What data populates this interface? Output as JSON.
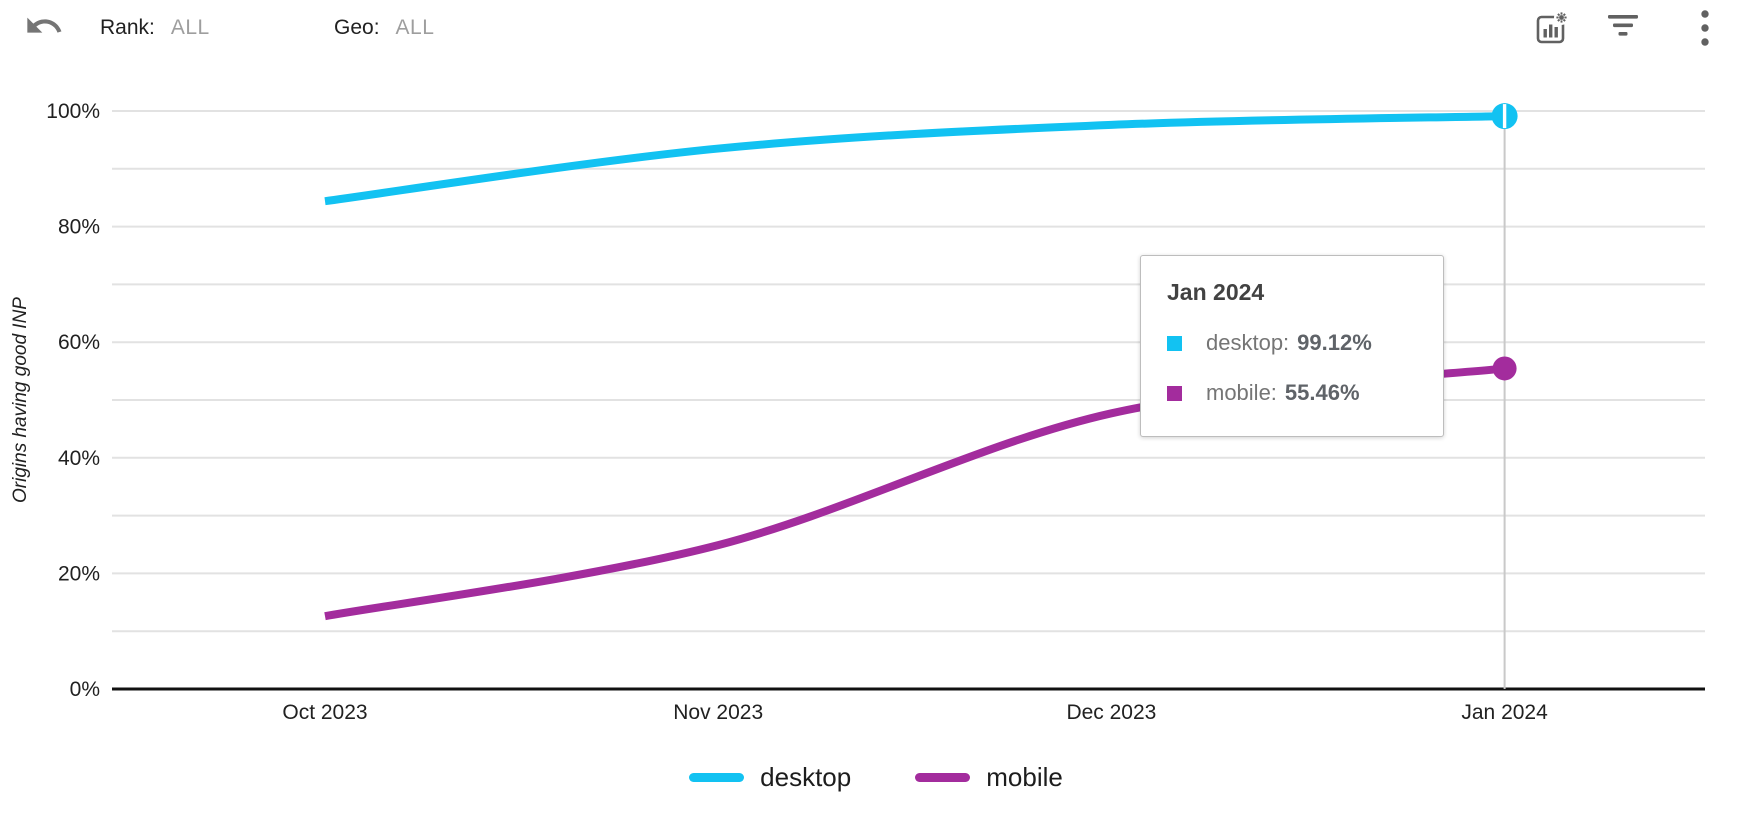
{
  "toolbar": {
    "undo_icon": "undo-icon",
    "rank_label": "Rank:",
    "rank_value": "ALL",
    "geo_label": "Geo:",
    "geo_value": "ALL",
    "chart_settings_icon": "chart-settings-icon",
    "filter_icon": "filter-icon",
    "more_icon": "more-vertical-icon"
  },
  "chart_data": {
    "type": "line",
    "title": "",
    "ylabel": "Origins having good INP",
    "xlabel": "",
    "categories": [
      "Oct 2023",
      "Nov 2023",
      "Dec 2023",
      "Jan 2024"
    ],
    "series": [
      {
        "name": "desktop",
        "color": "#12c2f2",
        "values": [
          84.4,
          93.5,
          97.6,
          99.12
        ]
      },
      {
        "name": "mobile",
        "color": "#a32c9d",
        "values": [
          12.6,
          24.9,
          47.7,
          55.46
        ]
      }
    ],
    "ylim": [
      0,
      100
    ],
    "yticks": [
      "0%",
      "20%",
      "40%",
      "60%",
      "80%",
      "100%"
    ],
    "ytick_values": [
      0,
      20,
      40,
      60,
      80,
      100
    ],
    "grid": true,
    "grid_step": 10,
    "legend_position": "bottom",
    "selected_index": 3,
    "selected_category": "Jan 2024"
  },
  "tooltip": {
    "title": "Jan 2024",
    "rows": [
      {
        "label": "desktop:",
        "value": "99.12%",
        "color": "#12c2f2"
      },
      {
        "label": "mobile:",
        "value": "55.46%",
        "color": "#a32c9d"
      }
    ]
  },
  "colors": {
    "grid_line": "#e2e2e2",
    "zero_axis": "#111111",
    "crosshair": "#c9c9c9",
    "icon_gray": "#616161",
    "undo_gray": "#757575"
  }
}
